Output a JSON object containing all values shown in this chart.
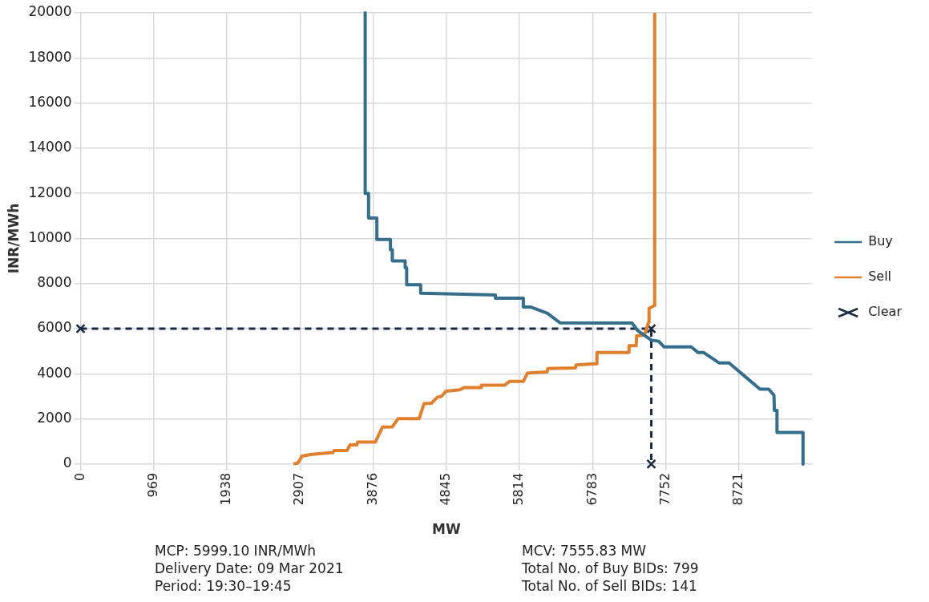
{
  "chart_data": {
    "type": "line",
    "xlabel": "MW",
    "ylabel": "INR/MWh",
    "xlim": [
      0,
      9690
    ],
    "xticks": [
      0,
      969,
      1938,
      2907,
      3876,
      4845,
      5814,
      6783,
      7752,
      8721
    ],
    "ylim": [
      0,
      20000
    ],
    "yticks": [
      0,
      2000,
      4000,
      6000,
      8000,
      10000,
      12000,
      14000,
      16000,
      18000,
      20000
    ],
    "grid": true,
    "legend": "right",
    "series": [
      {
        "name": "Buy",
        "color": "#346e8a",
        "marker": "none",
        "line_style": "solid",
        "x": [
          3770,
          3770,
          3815,
          3815,
          3925,
          3925,
          4105,
          4105,
          4130,
          4130,
          4300,
          4300,
          4320,
          4320,
          4505,
          4505,
          5495,
          5495,
          5865,
          5865,
          5960,
          6185,
          6350,
          7305,
          7380,
          7560,
          7660,
          7730,
          8090,
          8180,
          8255,
          8460,
          8590,
          8795,
          9000,
          9115,
          9185,
          9190,
          9225,
          9225,
          9570,
          9570
        ],
        "values": [
          20000,
          12000,
          12000,
          10900,
          10900,
          9950,
          9950,
          9500,
          9500,
          9000,
          9000,
          8700,
          8700,
          7950,
          7950,
          7570,
          7490,
          7350,
          7350,
          6960,
          6960,
          6680,
          6260,
          6250,
          5920,
          5490,
          5440,
          5190,
          5190,
          4940,
          4940,
          4480,
          4480,
          3900,
          3320,
          3320,
          3050,
          2380,
          2380,
          1400,
          1400,
          0
        ]
      },
      {
        "name": "Sell",
        "color": "#e07f2e",
        "marker": "none",
        "line_style": "solid",
        "x": [
          2820,
          2880,
          2935,
          3045,
          3345,
          3360,
          3530,
          3570,
          3660,
          3670,
          3905,
          4000,
          4130,
          4205,
          4485,
          4550,
          4650,
          4725,
          4780,
          4840,
          5025,
          5080,
          5305,
          5310,
          5620,
          5680,
          5865,
          5920,
          5980,
          6180,
          6190,
          6555,
          6565,
          6835,
          6840,
          7265,
          7265,
          7360,
          7365,
          7470,
          7525,
          7530,
          7600,
          7605
        ],
        "values": [
          0,
          50,
          350,
          420,
          510,
          600,
          600,
          850,
          850,
          970,
          970,
          1640,
          1650,
          2010,
          2010,
          2680,
          2700,
          2960,
          3000,
          3230,
          3290,
          3390,
          3390,
          3500,
          3500,
          3660,
          3660,
          4030,
          4050,
          4080,
          4230,
          4260,
          4390,
          4450,
          4940,
          4940,
          5250,
          5250,
          5680,
          5720,
          6290,
          6900,
          7020,
          20000
        ]
      },
      {
        "name": "Clear",
        "color": "#1a2a44",
        "marker": "cross",
        "line_style": "dashed",
        "x": [
          0,
          7560,
          7560
        ],
        "values": [
          6000,
          6000,
          0
        ]
      }
    ],
    "annotations": [
      "MCP: 5999.10 INR/MWh",
      "Delivery Date: 09 Mar 2021",
      "Period: 19:30–19:45",
      "MCV: 7555.83 MW",
      "Total No. of Buy BIDs: 799",
      "Total No. of Sell BIDs: 141"
    ]
  }
}
